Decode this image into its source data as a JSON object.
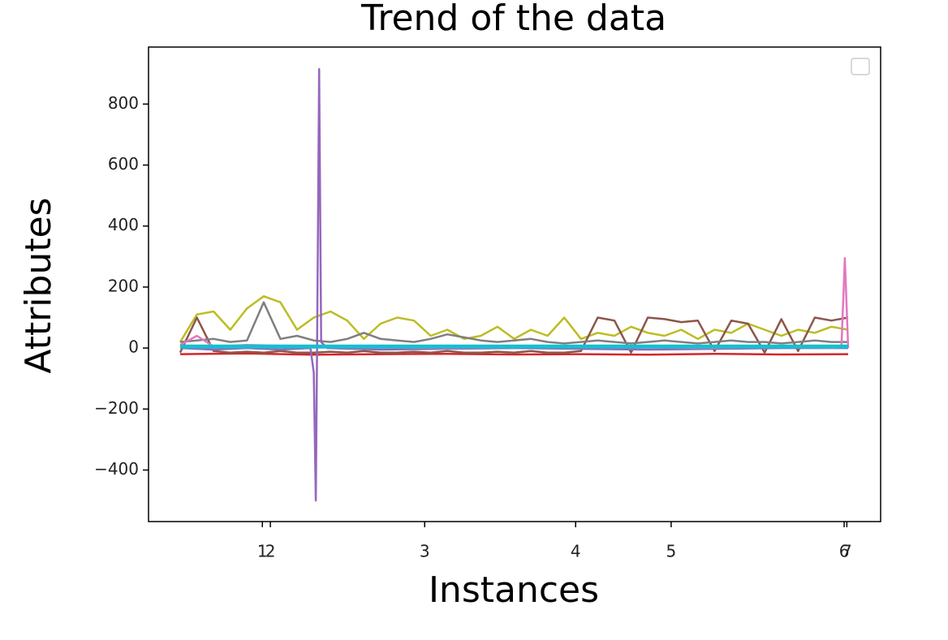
{
  "chart_data": {
    "type": "line",
    "title": "Trend of the data",
    "x_label": "Instances",
    "y_label": "Attributes",
    "xlim": [
      -47.4,
      1048.6
    ],
    "xticks": [
      {
        "value": 123,
        "label": "1"
      },
      {
        "value": 135,
        "label": "2"
      },
      {
        "value": 366,
        "label": "3"
      },
      {
        "value": 592,
        "label": "4"
      },
      {
        "value": 735,
        "label": "5"
      },
      {
        "value": 994,
        "label": "6"
      },
      {
        "value": 998,
        "label": "7"
      }
    ],
    "ylim": [
      -569,
      987
    ],
    "yticks": [
      {
        "value": -400,
        "label": "−400"
      },
      {
        "value": -200,
        "label": "−200"
      },
      0,
      200,
      400,
      600,
      800
    ],
    "series": [
      {
        "color": "#d62728",
        "x": [
          0,
          100,
          200,
          300,
          400,
          500,
          600,
          700,
          800,
          900,
          1000
        ],
        "values": [
          -20,
          -18,
          -22,
          -20,
          -19,
          -21,
          -20,
          -22,
          -19,
          -21,
          -20
        ]
      },
      {
        "color": "#bcbd22",
        "x": [
          0,
          25,
          50,
          75,
          100,
          125,
          150,
          175,
          200,
          225,
          250,
          275,
          300,
          325,
          350,
          375,
          400,
          425,
          450,
          475,
          500,
          525,
          550,
          575,
          600,
          625,
          650,
          675,
          700,
          725,
          750,
          775,
          800,
          825,
          850,
          875,
          900,
          925,
          950,
          975,
          1000
        ],
        "values": [
          20,
          110,
          120,
          60,
          130,
          170,
          150,
          60,
          100,
          120,
          90,
          30,
          80,
          100,
          90,
          40,
          60,
          30,
          40,
          70,
          30,
          60,
          40,
          100,
          30,
          50,
          40,
          70,
          50,
          40,
          60,
          30,
          60,
          50,
          80,
          60,
          40,
          60,
          50,
          70,
          60
        ]
      },
      {
        "color": "#8c564b",
        "x": [
          0,
          25,
          50,
          75,
          100,
          125,
          150,
          175,
          200,
          225,
          250,
          275,
          300,
          325,
          350,
          375,
          400,
          425,
          450,
          475,
          500,
          525,
          550,
          575,
          600,
          625,
          650,
          675,
          700,
          725,
          750,
          775,
          800,
          825,
          850,
          875,
          900,
          925,
          950,
          975,
          1000
        ],
        "values": [
          -15,
          100,
          -10,
          -15,
          -12,
          -15,
          -10,
          -15,
          -15,
          -12,
          -15,
          -10,
          -15,
          -15,
          -12,
          -15,
          -10,
          -15,
          -15,
          -12,
          -15,
          -10,
          -15,
          -15,
          -10,
          100,
          90,
          -15,
          100,
          95,
          85,
          90,
          -10,
          90,
          80,
          -15,
          95,
          -10,
          100,
          90,
          100
        ]
      },
      {
        "color": "#7f7f7f",
        "x": [
          0,
          25,
          50,
          75,
          100,
          125,
          150,
          175,
          200,
          225,
          250,
          275,
          300,
          325,
          350,
          375,
          400,
          425,
          450,
          475,
          500,
          525,
          550,
          575,
          600,
          625,
          650,
          675,
          700,
          725,
          750,
          775,
          800,
          825,
          850,
          875,
          900,
          925,
          950,
          975,
          1000
        ],
        "values": [
          20,
          25,
          30,
          20,
          25,
          150,
          30,
          40,
          25,
          20,
          30,
          50,
          30,
          25,
          20,
          30,
          45,
          35,
          25,
          20,
          25,
          30,
          20,
          15,
          20,
          25,
          20,
          15,
          20,
          25,
          20,
          15,
          20,
          25,
          20,
          20,
          15,
          20,
          25,
          20,
          20
        ]
      },
      {
        "color": "#9467bd",
        "x": [
          0,
          50,
          100,
          150,
          195,
          200,
          203,
          205,
          208,
          211,
          220,
          300,
          500,
          700,
          900,
          1000
        ],
        "values": [
          0,
          -5,
          0,
          -5,
          0,
          -80,
          -500,
          10,
          915,
          20,
          0,
          -5,
          0,
          -5,
          0,
          0
        ]
      },
      {
        "color": "#e377c2",
        "x": [
          0,
          25,
          50,
          100,
          200,
          400,
          600,
          800,
          900,
          980,
          990,
          995,
          1000
        ],
        "values": [
          10,
          40,
          5,
          10,
          5,
          0,
          5,
          0,
          5,
          0,
          10,
          295,
          0
        ]
      },
      {
        "color": "#17becf",
        "x": [
          0,
          250,
          500,
          750,
          1000
        ],
        "values": [
          5,
          5,
          5,
          5,
          5
        ]
      }
    ]
  }
}
